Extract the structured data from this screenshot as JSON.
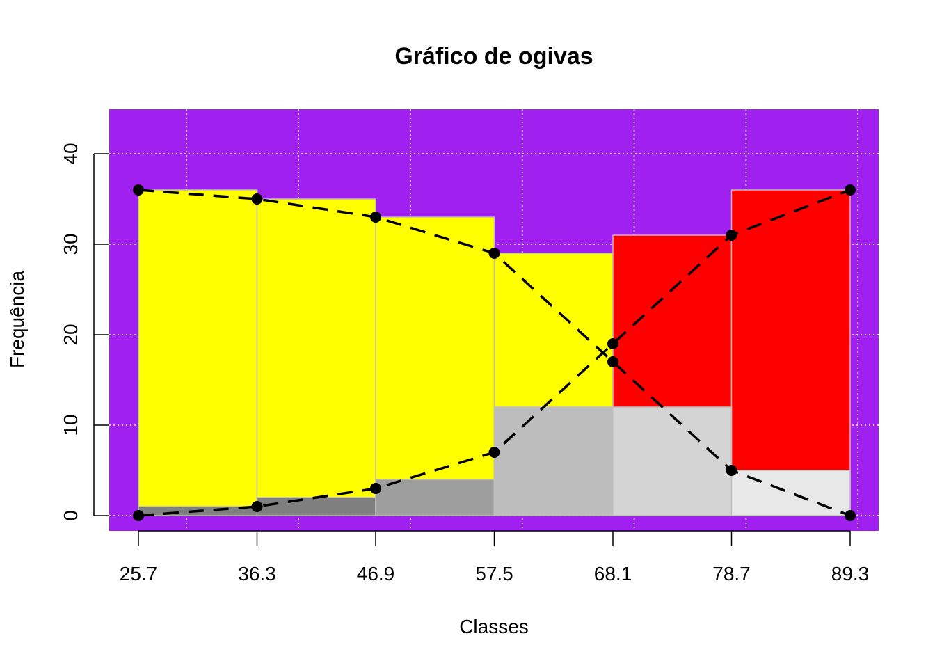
{
  "chart_data": {
    "type": "bar",
    "title": "Gráfico de ogivas",
    "xlabel": "Classes",
    "ylabel": "Frequência",
    "class_breaks": [
      25.7,
      36.3,
      46.9,
      57.5,
      68.1,
      78.7,
      89.3
    ],
    "x_tick_labels": [
      "25.7",
      "36.3",
      "46.9",
      "57.5",
      "68.1",
      "78.7",
      "89.3"
    ],
    "y_ticks": [
      0,
      10,
      20,
      30,
      40
    ],
    "ylim": [
      0,
      44
    ],
    "grid": true,
    "background_color": "#A020F0",
    "bars": {
      "greater_than": {
        "values": [
          36,
          35,
          33,
          29,
          17,
          5
        ],
        "color": "#FFFF00"
      },
      "less_than": {
        "values": [
          31,
          36
        ],
        "start_class_index": 4,
        "color": "#FF0000"
      },
      "class_frequency": {
        "values": [
          1,
          2,
          4,
          12,
          12,
          5
        ],
        "colors": [
          "#7F7F7F",
          "#7F7F7F",
          "#9E9E9E",
          "#BDBDBD",
          "#D4D4D4",
          "#E8E8E8"
        ]
      }
    },
    "series": [
      {
        "x": [
          25.7,
          36.3,
          46.9,
          57.5,
          68.1,
          78.7,
          89.3
        ],
        "values": [
          36,
          35,
          33,
          29,
          17,
          5,
          0
        ]
      },
      {
        "x": [
          25.7,
          36.3,
          46.9,
          57.5,
          68.1,
          78.7,
          89.3
        ],
        "values": [
          0,
          1,
          3,
          7,
          19,
          31,
          36
        ]
      }
    ]
  }
}
